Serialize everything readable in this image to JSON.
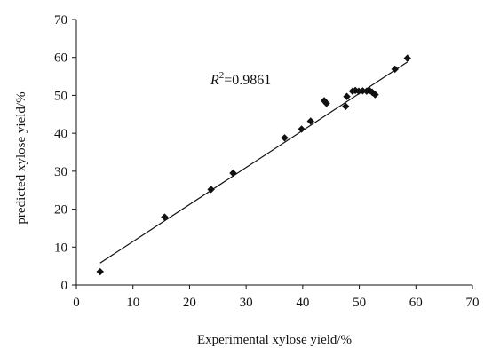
{
  "chart_data": {
    "type": "scatter",
    "xlabel": "Experimental xylose yield/%",
    "ylabel": "predicted xylose yield/%",
    "xlim": [
      0,
      70
    ],
    "ylim": [
      0,
      70
    ],
    "x_ticks": [
      0,
      10,
      20,
      30,
      40,
      50,
      60,
      70
    ],
    "y_ticks": [
      0,
      10,
      20,
      30,
      40,
      50,
      60,
      70
    ],
    "grid": false,
    "legend": "none",
    "annotation": {
      "r_symbol": "R",
      "r_exponent": "2",
      "r_value": "=0.9861"
    },
    "marker_color": "#111111",
    "points": [
      {
        "x": 4.2,
        "y": 3.5
      },
      {
        "x": 15.6,
        "y": 17.9
      },
      {
        "x": 23.8,
        "y": 25.2
      },
      {
        "x": 27.7,
        "y": 29.5
      },
      {
        "x": 36.8,
        "y": 38.8
      },
      {
        "x": 39.8,
        "y": 41.1
      },
      {
        "x": 41.4,
        "y": 43.2
      },
      {
        "x": 43.8,
        "y": 48.6
      },
      {
        "x": 44.2,
        "y": 47.9
      },
      {
        "x": 47.6,
        "y": 47.1
      },
      {
        "x": 47.8,
        "y": 49.7
      },
      {
        "x": 48.8,
        "y": 51.1
      },
      {
        "x": 49.3,
        "y": 51.3
      },
      {
        "x": 49.9,
        "y": 51.1
      },
      {
        "x": 50.6,
        "y": 51.2
      },
      {
        "x": 51.3,
        "y": 51.1
      },
      {
        "x": 51.8,
        "y": 51.3
      },
      {
        "x": 52.3,
        "y": 50.8
      },
      {
        "x": 52.8,
        "y": 50.2
      },
      {
        "x": 56.3,
        "y": 56.9
      },
      {
        "x": 58.5,
        "y": 59.8
      }
    ],
    "trendline": {
      "x": [
        4.2,
        58.5
      ],
      "y": [
        5.8,
        58.8
      ]
    }
  }
}
